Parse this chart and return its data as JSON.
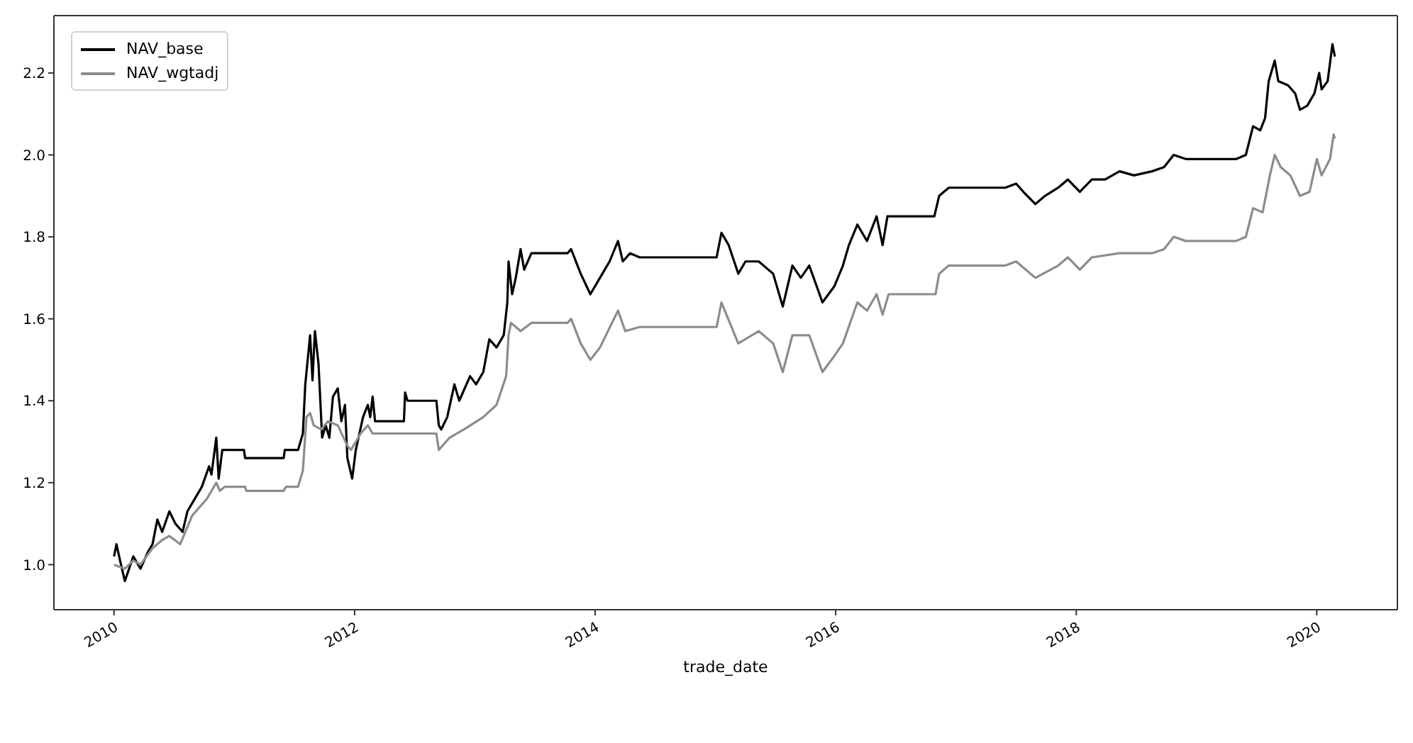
{
  "chart_data": {
    "type": "line",
    "xlabel": "trade_date",
    "xlim": [
      2009.5,
      2020.67
    ],
    "xticks": [
      2010,
      2012,
      2014,
      2016,
      2018,
      2020
    ],
    "ylim": [
      0.89,
      2.34
    ],
    "yticks": [
      {
        "value": 1.0,
        "label": "1.0"
      },
      {
        "value": 1.2,
        "label": "1.2"
      },
      {
        "value": 1.4,
        "label": "1.4"
      },
      {
        "value": 1.6,
        "label": "1.6"
      },
      {
        "value": 1.8,
        "label": "1.8"
      },
      {
        "value": 2.0,
        "label": "2.0"
      },
      {
        "value": 2.2,
        "label": "2.2"
      }
    ],
    "grid": false,
    "legend": "top left",
    "marker": "none",
    "line_style": "solid",
    "series": [
      {
        "name": "NAV_base",
        "color": "#000000",
        "x": [
          2010.0,
          2010.02,
          2010.05,
          2010.09,
          2010.125,
          2010.16,
          2010.22,
          2010.28,
          2010.32,
          2010.36,
          2010.4,
          2010.46,
          2010.51,
          2010.57,
          2010.61,
          2010.69,
          2010.73,
          2010.79,
          2010.81,
          2010.85,
          2010.87,
          2010.9,
          2011.08,
          2011.09,
          2011.41,
          2011.42,
          2011.53,
          2011.57,
          2011.59,
          2011.63,
          2011.65,
          2011.67,
          2011.7,
          2011.73,
          2011.76,
          2011.79,
          2011.82,
          2011.86,
          2011.89,
          2011.92,
          2011.94,
          2011.98,
          2012.01,
          2012.07,
          2012.11,
          2012.13,
          2012.15,
          2012.17,
          2012.41,
          2012.42,
          2012.44,
          2012.68,
          2012.7,
          2012.72,
          2012.77,
          2012.83,
          2012.87,
          2012.96,
          2013.01,
          2013.07,
          2013.12,
          2013.18,
          2013.24,
          2013.27,
          2013.28,
          2013.31,
          2013.34,
          2013.38,
          2013.41,
          2013.47,
          2013.77,
          2013.8,
          2013.88,
          2013.96,
          2014.04,
          2014.12,
          2014.19,
          2014.23,
          2014.29,
          2014.37,
          2015.01,
          2015.05,
          2015.11,
          2015.19,
          2015.25,
          2015.36,
          2015.48,
          2015.56,
          2015.64,
          2015.71,
          2015.78,
          2015.89,
          2015.99,
          2016.06,
          2016.11,
          2016.18,
          2016.26,
          2016.34,
          2016.39,
          2016.43,
          2016.76,
          2016.82,
          2016.86,
          2016.94,
          2017.41,
          2017.5,
          2017.56,
          2017.66,
          2017.74,
          2017.85,
          2017.93,
          2018.03,
          2018.13,
          2018.24,
          2018.36,
          2018.48,
          2018.63,
          2018.73,
          2018.81,
          2018.91,
          2019.33,
          2019.41,
          2019.47,
          2019.53,
          2019.57,
          2019.6,
          2019.65,
          2019.68,
          2019.76,
          2019.82,
          2019.86,
          2019.92,
          2019.98,
          2020.02,
          2020.04,
          2020.09,
          2020.13,
          2020.15
        ],
        "values": [
          1.02,
          1.05,
          1.01,
          0.96,
          0.99,
          1.02,
          0.99,
          1.03,
          1.05,
          1.11,
          1.08,
          1.13,
          1.1,
          1.08,
          1.13,
          1.17,
          1.19,
          1.24,
          1.22,
          1.31,
          1.21,
          1.28,
          1.28,
          1.26,
          1.26,
          1.28,
          1.28,
          1.32,
          1.44,
          1.56,
          1.45,
          1.57,
          1.49,
          1.31,
          1.34,
          1.31,
          1.41,
          1.43,
          1.35,
          1.39,
          1.26,
          1.21,
          1.28,
          1.36,
          1.39,
          1.36,
          1.41,
          1.35,
          1.35,
          1.42,
          1.4,
          1.4,
          1.34,
          1.33,
          1.36,
          1.44,
          1.4,
          1.46,
          1.44,
          1.47,
          1.55,
          1.53,
          1.56,
          1.64,
          1.74,
          1.66,
          1.7,
          1.77,
          1.72,
          1.76,
          1.76,
          1.77,
          1.71,
          1.66,
          1.7,
          1.74,
          1.79,
          1.74,
          1.76,
          1.75,
          1.75,
          1.81,
          1.78,
          1.71,
          1.74,
          1.74,
          1.71,
          1.63,
          1.73,
          1.7,
          1.73,
          1.64,
          1.68,
          1.73,
          1.78,
          1.83,
          1.79,
          1.85,
          1.78,
          1.85,
          1.85,
          1.85,
          1.9,
          1.92,
          1.92,
          1.93,
          1.91,
          1.88,
          1.9,
          1.92,
          1.94,
          1.91,
          1.94,
          1.94,
          1.96,
          1.95,
          1.96,
          1.97,
          2.0,
          1.99,
          1.99,
          2.0,
          2.07,
          2.06,
          2.09,
          2.18,
          2.23,
          2.18,
          2.17,
          2.15,
          2.11,
          2.12,
          2.15,
          2.2,
          2.16,
          2.18,
          2.27,
          2.24
        ]
      },
      {
        "name": "NAV_wgtadj",
        "color": "#8c8c8c",
        "x": [
          2010.0,
          2010.09,
          2010.16,
          2010.22,
          2010.32,
          2010.4,
          2010.46,
          2010.55,
          2010.65,
          2010.77,
          2010.85,
          2010.88,
          2010.92,
          2011.09,
          2011.1,
          2011.41,
          2011.43,
          2011.53,
          2011.57,
          2011.6,
          2011.63,
          2011.66,
          2011.72,
          2011.78,
          2011.86,
          2011.94,
          2011.97,
          2012.05,
          2012.11,
          2012.15,
          2012.68,
          2012.7,
          2012.79,
          2012.91,
          2013.07,
          2013.18,
          2013.26,
          2013.28,
          2013.3,
          2013.38,
          2013.47,
          2013.77,
          2013.8,
          2013.88,
          2013.96,
          2014.04,
          2014.19,
          2014.25,
          2014.37,
          2015.01,
          2015.05,
          2015.19,
          2015.36,
          2015.48,
          2015.56,
          2015.64,
          2015.78,
          2015.89,
          2015.99,
          2016.06,
          2016.18,
          2016.26,
          2016.34,
          2016.39,
          2016.44,
          2016.76,
          2016.83,
          2016.86,
          2016.94,
          2017.41,
          2017.5,
          2017.66,
          2017.85,
          2017.93,
          2018.03,
          2018.13,
          2018.36,
          2018.63,
          2018.73,
          2018.81,
          2018.91,
          2019.33,
          2019.41,
          2019.47,
          2019.55,
          2019.61,
          2019.65,
          2019.7,
          2019.78,
          2019.86,
          2019.94,
          2020.0,
          2020.04,
          2020.11,
          2020.14,
          2020.15
        ],
        "values": [
          1.0,
          0.99,
          1.01,
          1.0,
          1.04,
          1.06,
          1.07,
          1.05,
          1.12,
          1.16,
          1.2,
          1.18,
          1.19,
          1.19,
          1.18,
          1.18,
          1.19,
          1.19,
          1.23,
          1.36,
          1.37,
          1.34,
          1.33,
          1.35,
          1.34,
          1.29,
          1.28,
          1.32,
          1.34,
          1.32,
          1.32,
          1.28,
          1.31,
          1.33,
          1.36,
          1.39,
          1.46,
          1.56,
          1.59,
          1.57,
          1.59,
          1.59,
          1.6,
          1.54,
          1.5,
          1.53,
          1.62,
          1.57,
          1.58,
          1.58,
          1.64,
          1.54,
          1.57,
          1.54,
          1.47,
          1.56,
          1.56,
          1.47,
          1.51,
          1.54,
          1.64,
          1.62,
          1.66,
          1.61,
          1.66,
          1.66,
          1.66,
          1.71,
          1.73,
          1.73,
          1.74,
          1.7,
          1.73,
          1.75,
          1.72,
          1.75,
          1.76,
          1.76,
          1.77,
          1.8,
          1.79,
          1.79,
          1.8,
          1.87,
          1.86,
          1.95,
          2.0,
          1.97,
          1.95,
          1.9,
          1.91,
          1.99,
          1.95,
          1.99,
          2.05,
          2.04
        ]
      }
    ]
  }
}
